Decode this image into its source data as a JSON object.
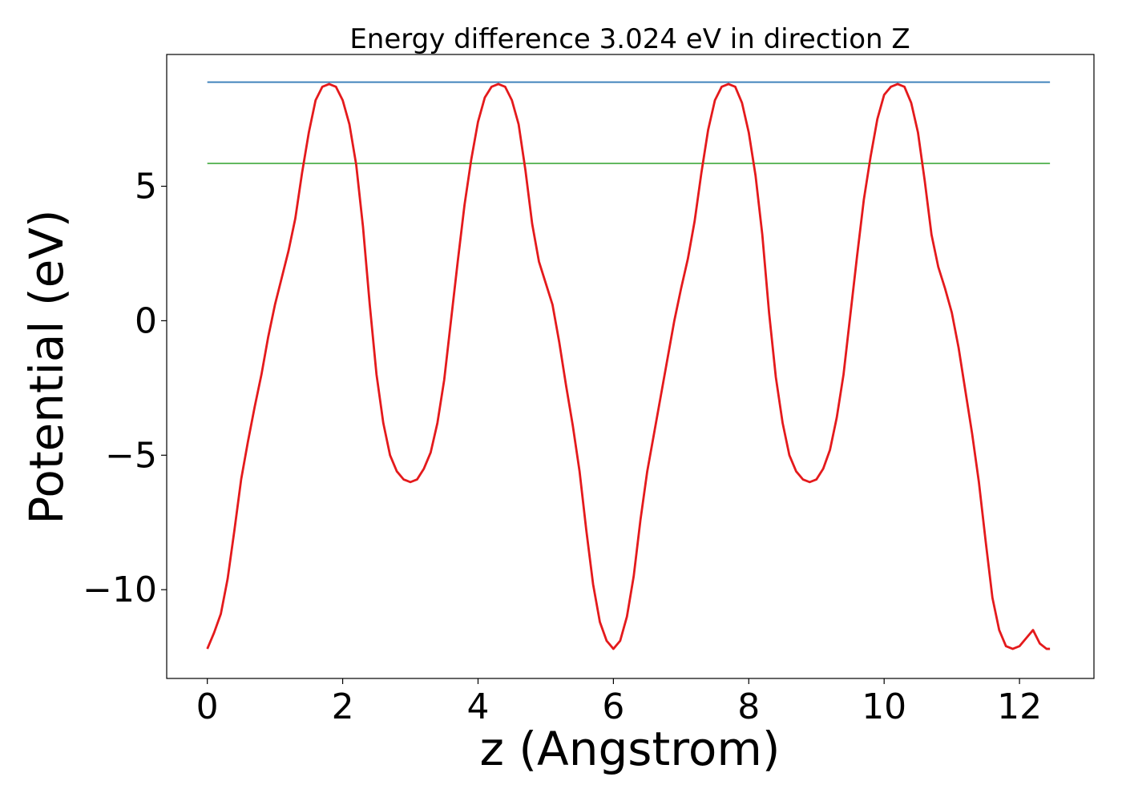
{
  "chart_data": {
    "type": "line",
    "title": "Energy difference 3.024 eV in direction Z",
    "xlabel": "z (Angstrom)",
    "ylabel": "Potential (eV)",
    "xlim": [
      -0.6,
      13.1
    ],
    "ylim": [
      -13.3,
      9.9
    ],
    "xticks": [
      0,
      2,
      4,
      6,
      8,
      10,
      12
    ],
    "xtick_labels": [
      "0",
      "2",
      "4",
      "6",
      "8",
      "10",
      "12"
    ],
    "yticks": [
      -10,
      -5,
      0,
      5
    ],
    "ytick_labels": [
      "−10",
      "−5",
      "0",
      "5"
    ],
    "grid": false,
    "legend": "none",
    "series": [
      {
        "role": "potential",
        "color": "#e41a1c",
        "x": [
          0.0,
          0.1,
          0.2,
          0.3,
          0.4,
          0.5,
          0.6,
          0.7,
          0.8,
          0.9,
          1.0,
          1.1,
          1.2,
          1.3,
          1.4,
          1.5,
          1.6,
          1.7,
          1.8,
          1.9,
          2.0,
          2.1,
          2.2,
          2.3,
          2.4,
          2.5,
          2.6,
          2.7,
          2.8,
          2.9,
          3.0,
          3.1,
          3.2,
          3.3,
          3.4,
          3.5,
          3.6,
          3.7,
          3.8,
          3.9,
          4.0,
          4.1,
          4.2,
          4.3,
          4.4,
          4.5,
          4.6,
          4.7,
          4.8,
          4.9,
          5.0,
          5.1,
          5.2,
          5.3,
          5.4,
          5.5,
          5.6,
          5.7,
          5.8,
          5.9,
          6.0,
          6.1,
          6.2,
          6.3,
          6.4,
          6.5,
          6.6,
          6.7,
          6.8,
          6.9,
          7.0,
          7.1,
          7.2,
          7.3,
          7.4,
          7.5,
          7.6,
          7.7,
          7.8,
          7.9,
          8.0,
          8.1,
          8.2,
          8.3,
          8.4,
          8.5,
          8.6,
          8.7,
          8.8,
          8.9,
          9.0,
          9.1,
          9.2,
          9.3,
          9.4,
          9.5,
          9.6,
          9.7,
          9.8,
          9.9,
          10.0,
          10.1,
          10.2,
          10.3,
          10.4,
          10.5,
          10.6,
          10.7,
          10.8,
          10.9,
          11.0,
          11.1,
          11.2,
          11.3,
          11.4,
          11.5,
          11.6,
          11.7,
          11.8,
          11.9,
          12.0,
          12.1,
          12.2,
          12.3,
          12.4,
          12.45
        ],
        "y": [
          -12.2,
          -11.6,
          -10.9,
          -9.6,
          -7.8,
          -5.9,
          -4.5,
          -3.2,
          -2.0,
          -0.6,
          0.6,
          1.6,
          2.6,
          3.8,
          5.5,
          7.0,
          8.2,
          8.7,
          8.8,
          8.7,
          8.2,
          7.3,
          5.8,
          3.5,
          0.6,
          -2.0,
          -3.8,
          -5.0,
          -5.6,
          -5.9,
          -6.0,
          -5.9,
          -5.5,
          -4.9,
          -3.8,
          -2.2,
          0.0,
          2.2,
          4.3,
          6.0,
          7.4,
          8.3,
          8.7,
          8.8,
          8.7,
          8.2,
          7.3,
          5.6,
          3.6,
          2.2,
          1.4,
          0.6,
          -0.8,
          -2.4,
          -3.9,
          -5.6,
          -7.8,
          -9.8,
          -11.2,
          -11.9,
          -12.2,
          -11.9,
          -11.0,
          -9.5,
          -7.4,
          -5.6,
          -4.2,
          -2.8,
          -1.4,
          0.0,
          1.2,
          2.3,
          3.7,
          5.5,
          7.1,
          8.2,
          8.7,
          8.8,
          8.7,
          8.1,
          7.0,
          5.4,
          3.2,
          0.3,
          -2.1,
          -3.8,
          -5.0,
          -5.6,
          -5.9,
          -6.0,
          -5.9,
          -5.5,
          -4.8,
          -3.6,
          -2.0,
          0.2,
          2.4,
          4.5,
          6.1,
          7.5,
          8.4,
          8.7,
          8.8,
          8.7,
          8.1,
          7.0,
          5.2,
          3.2,
          2.0,
          1.2,
          0.3,
          -1.0,
          -2.6,
          -4.2,
          -6.0,
          -8.2,
          -10.3,
          -11.5,
          -12.1,
          -12.2,
          -12.1,
          -11.8,
          -11.5,
          -12.0,
          -12.2,
          -12.2
        ]
      },
      {
        "role": "upper-level",
        "color": "#377eb8",
        "x": [
          0,
          12.45
        ],
        "y": [
          8.87,
          8.87
        ]
      },
      {
        "role": "lower-level",
        "color": "#4daf4a",
        "x": [
          0,
          12.45
        ],
        "y": [
          5.85,
          5.85
        ]
      }
    ]
  }
}
